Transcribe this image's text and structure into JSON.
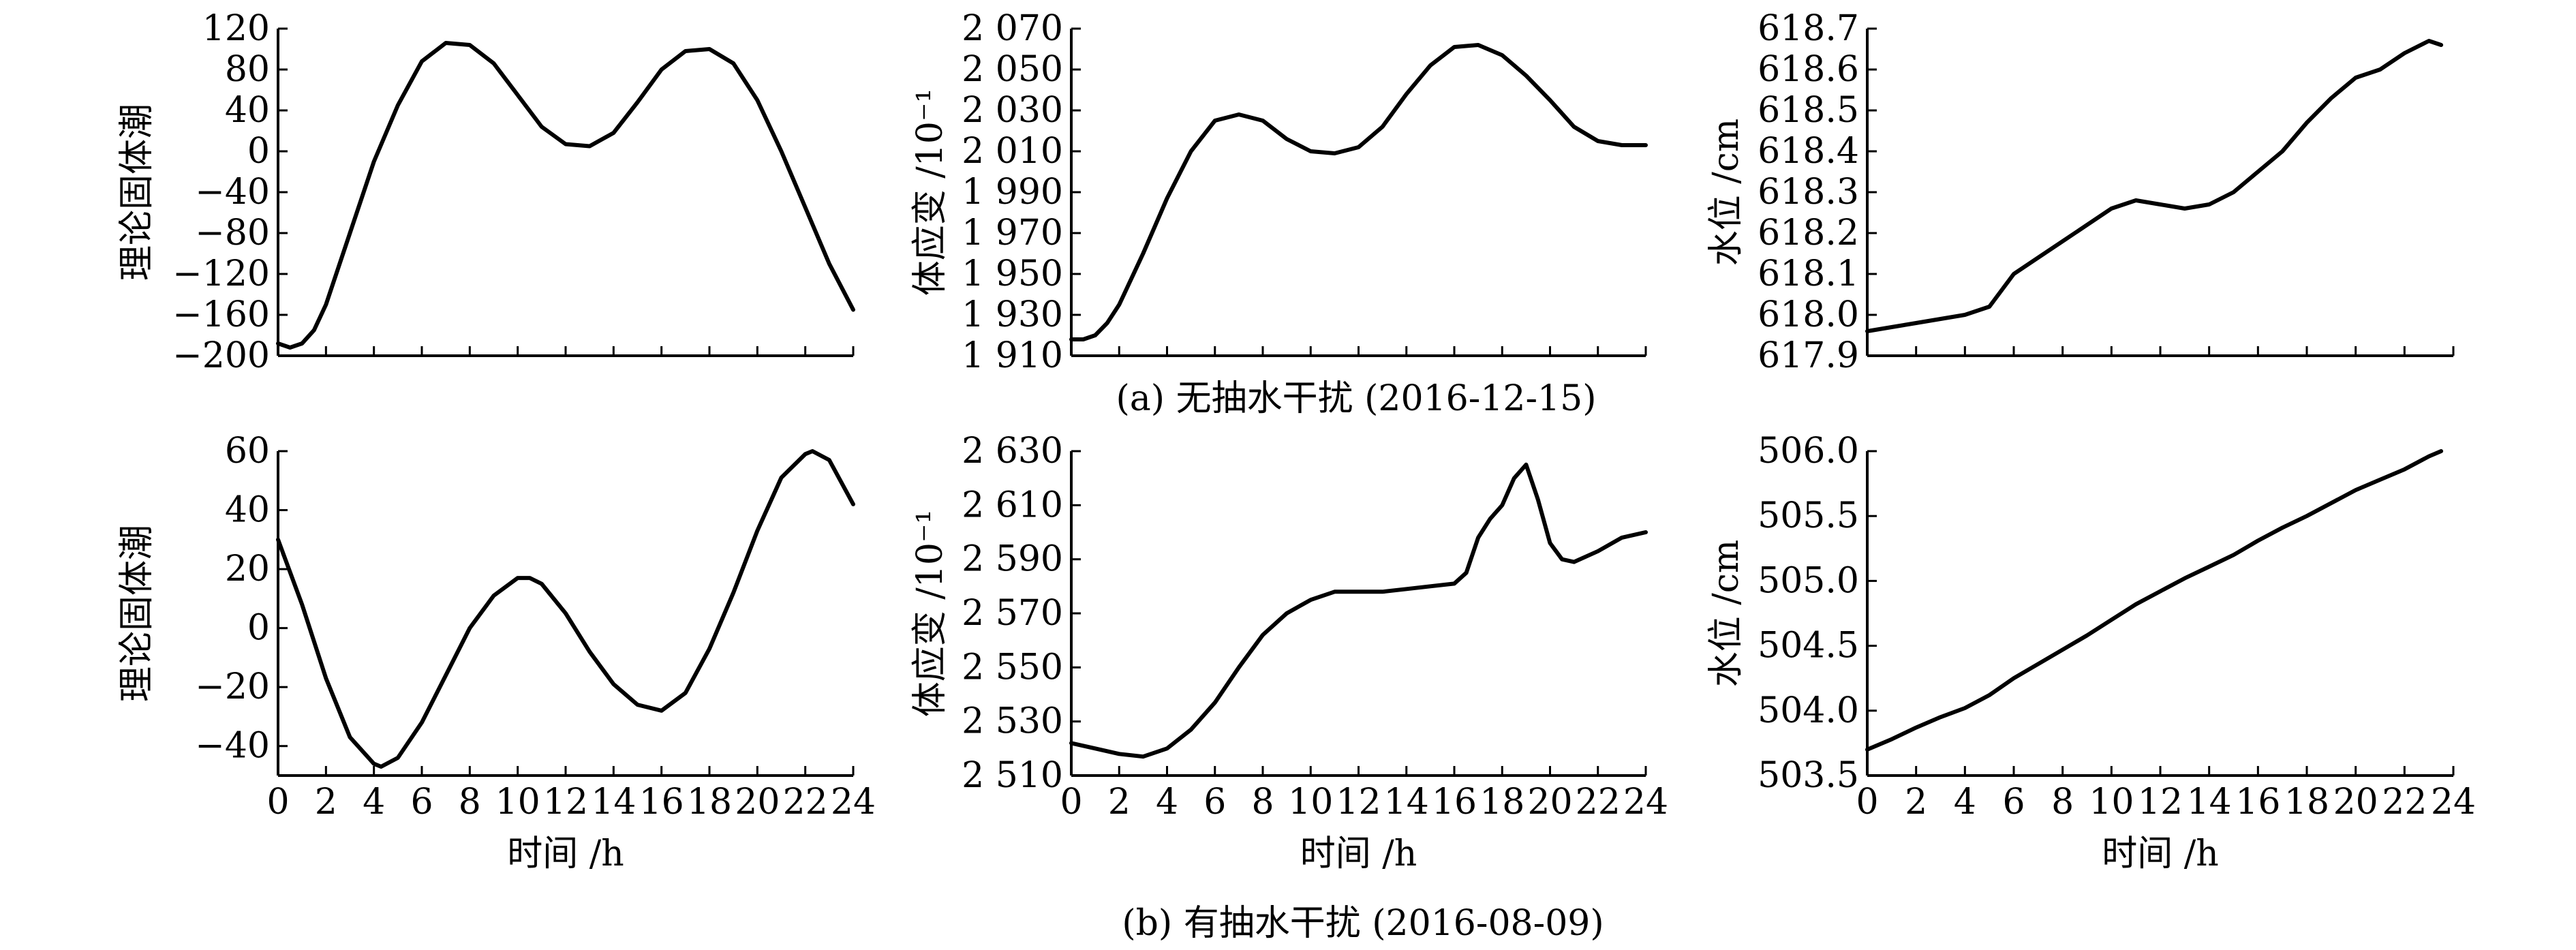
{
  "captions": {
    "a": "(a) 无抽水干扰 (2016-12-15)",
    "b": "(b) 有抽水干扰 (2016-08-09)"
  },
  "chart_data": [
    {
      "id": "a1",
      "type": "line",
      "ylabel": "理论固体潮",
      "xlabel": "",
      "xlim": [
        0,
        24
      ],
      "ylim": [
        -200,
        120
      ],
      "yticks": [
        120,
        80,
        40,
        0,
        -40,
        -80,
        -120,
        -160,
        -200
      ],
      "ytick_labels": [
        "120",
        "80",
        "40",
        "0",
        "−40",
        "−80",
        "−120",
        "−160",
        "−200"
      ],
      "show_xtick_labels": false,
      "series": [
        {
          "x": [
            0,
            0.5,
            1,
            1.5,
            2,
            3,
            4,
            5,
            6,
            7,
            8,
            9,
            10,
            11,
            12,
            13,
            14,
            15,
            16,
            17,
            18,
            19,
            20,
            21,
            22,
            23,
            24
          ],
          "y": [
            -188,
            -192,
            -188,
            -175,
            -150,
            -80,
            -10,
            45,
            88,
            106,
            104,
            86,
            55,
            24,
            7,
            5,
            18,
            48,
            80,
            98,
            100,
            86,
            50,
            0,
            -55,
            -110,
            -155
          ]
        }
      ]
    },
    {
      "id": "a2",
      "type": "line",
      "ylabel": "体应变 /10⁻¹",
      "xlabel": "",
      "xlim": [
        0,
        24
      ],
      "ylim": [
        1910,
        2070
      ],
      "yticks": [
        2070,
        2050,
        2030,
        2010,
        1990,
        1970,
        1950,
        1930,
        1910
      ],
      "ytick_labels": [
        "2 070",
        "2 050",
        "2 030",
        "2 010",
        "1 990",
        "1 970",
        "1 950",
        "1 930",
        "1 910"
      ],
      "show_xtick_labels": false,
      "series": [
        {
          "x": [
            0,
            0.5,
            1,
            1.5,
            2,
            3,
            4,
            5,
            6,
            7,
            8,
            9,
            10,
            11,
            12,
            13,
            14,
            15,
            16,
            17,
            18,
            19,
            20,
            21,
            22,
            23,
            24
          ],
          "y": [
            1918,
            1918,
            1920,
            1926,
            1935,
            1960,
            1987,
            2010,
            2025,
            2028,
            2025,
            2016,
            2010,
            2009,
            2012,
            2022,
            2038,
            2052,
            2061,
            2062,
            2057,
            2047,
            2035,
            2022,
            2015,
            2013,
            2013
          ]
        }
      ]
    },
    {
      "id": "a3",
      "type": "line",
      "ylabel": "水位 /cm",
      "xlabel": "",
      "xlim": [
        0,
        24
      ],
      "ylim": [
        617.9,
        618.7
      ],
      "yticks": [
        618.7,
        618.6,
        618.5,
        618.4,
        618.3,
        618.2,
        618.1,
        618.0,
        617.9
      ],
      "ytick_labels": [
        "618.7",
        "618.6",
        "618.5",
        "618.4",
        "618.3",
        "618.2",
        "618.1",
        "618.0",
        "617.9"
      ],
      "show_xtick_labels": false,
      "series": [
        {
          "x": [
            0,
            1,
            2,
            3,
            4,
            5,
            6,
            7,
            8,
            9,
            10,
            11,
            12,
            13,
            14,
            15,
            16,
            17,
            18,
            19,
            20,
            21,
            22,
            23,
            23.5
          ],
          "y": [
            617.96,
            617.97,
            617.98,
            617.99,
            618.0,
            618.02,
            618.1,
            618.14,
            618.18,
            618.22,
            618.26,
            618.28,
            618.27,
            618.26,
            618.27,
            618.3,
            618.35,
            618.4,
            618.47,
            618.53,
            618.58,
            618.6,
            618.64,
            618.67,
            618.66
          ]
        }
      ]
    },
    {
      "id": "b1",
      "type": "line",
      "ylabel": "理论固体潮",
      "xlabel": "时间 /h",
      "xlim": [
        0,
        24
      ],
      "ylim": [
        -50,
        60
      ],
      "yticks": [
        60,
        40,
        20,
        0,
        -20,
        -40
      ],
      "ytick_labels": [
        "60",
        "40",
        "20",
        "0",
        "−20",
        "−40"
      ],
      "xticks": [
        0,
        2,
        4,
        6,
        8,
        10,
        12,
        14,
        16,
        18,
        20,
        22,
        24
      ],
      "xtick_labels": [
        "0",
        "2",
        "4",
        "6",
        "8",
        "10",
        "12",
        "14",
        "16",
        "18",
        "20",
        "22",
        "24"
      ],
      "show_xtick_labels": true,
      "series": [
        {
          "x": [
            0,
            1,
            2,
            3,
            4,
            4.3,
            5,
            6,
            7,
            8,
            9,
            10,
            10.5,
            11,
            12,
            13,
            14,
            15,
            16,
            17,
            18,
            19,
            20,
            21,
            22,
            22.3,
            23,
            24
          ],
          "y": [
            30,
            8,
            -17,
            -37,
            -46,
            -47,
            -44,
            -32,
            -16,
            0,
            11,
            17,
            17,
            15,
            5,
            -8,
            -19,
            -26,
            -28,
            -22,
            -7,
            12,
            33,
            51,
            59,
            60,
            57,
            42
          ]
        }
      ]
    },
    {
      "id": "b2",
      "type": "line",
      "ylabel": "体应变 /10⁻¹",
      "xlabel": "时间 /h",
      "xlim": [
        0,
        24
      ],
      "ylim": [
        2510,
        2630
      ],
      "yticks": [
        2630,
        2610,
        2590,
        2570,
        2550,
        2530,
        2510
      ],
      "ytick_labels": [
        "2 630",
        "2 610",
        "2 590",
        "2 570",
        "2 550",
        "2 530",
        "2 510"
      ],
      "xticks": [
        0,
        2,
        4,
        6,
        8,
        10,
        12,
        14,
        16,
        18,
        20,
        22,
        24
      ],
      "xtick_labels": [
        "0",
        "2",
        "4",
        "6",
        "8",
        "10",
        "12",
        "14",
        "16",
        "18",
        "20",
        "22",
        "24"
      ],
      "show_xtick_labels": true,
      "series": [
        {
          "x": [
            0,
            1,
            2,
            3,
            4,
            5,
            6,
            7,
            8,
            9,
            10,
            11,
            12,
            13,
            14,
            15,
            16,
            16.5,
            17,
            17.5,
            18,
            18.5,
            19,
            19.5,
            20,
            20.5,
            21,
            22,
            23,
            24
          ],
          "y": [
            2522,
            2520,
            2518,
            2517,
            2520,
            2527,
            2537,
            2550,
            2562,
            2570,
            2575,
            2578,
            2578,
            2578,
            2579,
            2580,
            2581,
            2585,
            2598,
            2605,
            2610,
            2620,
            2625,
            2612,
            2596,
            2590,
            2589,
            2593,
            2598,
            2600
          ]
        }
      ]
    },
    {
      "id": "b3",
      "type": "line",
      "ylabel": "水位 /cm",
      "xlabel": "时间 /h",
      "xlim": [
        0,
        24
      ],
      "ylim": [
        503.5,
        506.0
      ],
      "yticks": [
        506.0,
        505.5,
        505.0,
        504.5,
        504.0,
        503.5
      ],
      "ytick_labels": [
        "506.0",
        "505.5",
        "505.0",
        "504.5",
        "504.0",
        "503.5"
      ],
      "xticks": [
        0,
        2,
        4,
        6,
        8,
        10,
        12,
        14,
        16,
        18,
        20,
        22,
        24
      ],
      "xtick_labels": [
        "0",
        "2",
        "4",
        "6",
        "8",
        "10",
        "12",
        "14",
        "16",
        "18",
        "20",
        "22",
        "24"
      ],
      "show_xtick_labels": true,
      "series": [
        {
          "x": [
            0,
            1,
            2,
            3,
            4,
            5,
            6,
            7,
            8,
            9,
            10,
            11,
            12,
            13,
            14,
            15,
            16,
            17,
            18,
            19,
            20,
            21,
            22,
            23,
            23.5
          ],
          "y": [
            503.7,
            503.78,
            503.87,
            503.95,
            504.02,
            504.12,
            504.25,
            504.36,
            504.47,
            504.58,
            504.7,
            504.82,
            504.92,
            505.02,
            505.11,
            505.2,
            505.31,
            505.41,
            505.5,
            505.6,
            505.7,
            505.78,
            505.86,
            505.96,
            506.0
          ]
        }
      ]
    }
  ]
}
